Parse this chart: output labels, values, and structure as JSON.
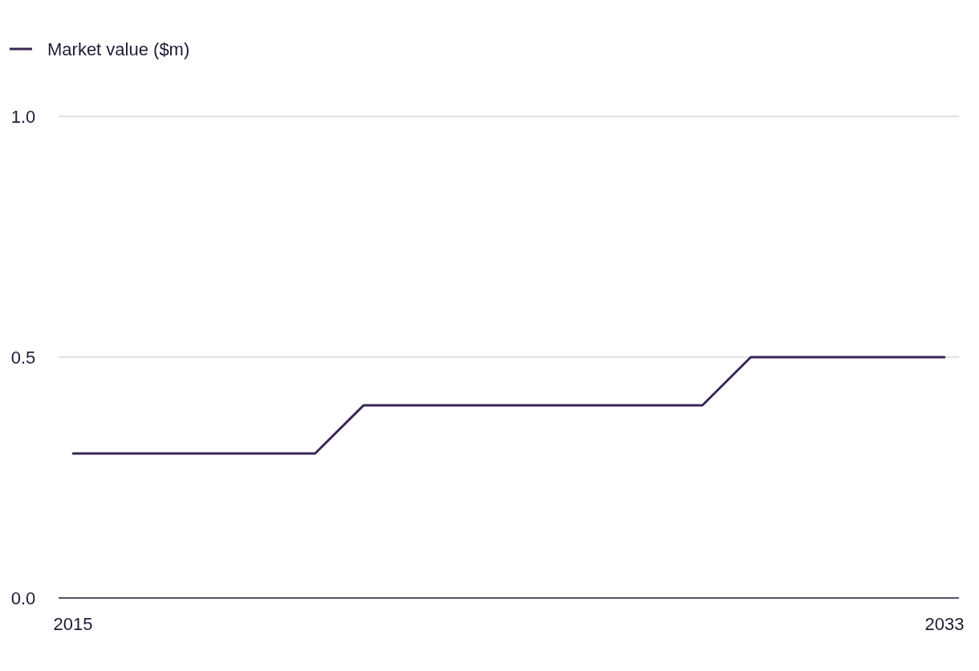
{
  "chart_data": {
    "type": "line",
    "x": [
      2015,
      2016,
      2017,
      2018,
      2019,
      2020,
      2021,
      2022,
      2023,
      2024,
      2025,
      2026,
      2027,
      2028,
      2029,
      2030,
      2031,
      2032,
      2033
    ],
    "series": [
      {
        "name": "Market value ($m)",
        "color": "#3b2556",
        "values": [
          0.3,
          0.3,
          0.3,
          0.3,
          0.3,
          0.3,
          0.4,
          0.4,
          0.4,
          0.4,
          0.4,
          0.4,
          0.4,
          0.4,
          0.5,
          0.5,
          0.5,
          0.5,
          0.5
        ]
      }
    ],
    "xlim": [
      2014.7,
      2033.3
    ],
    "xticks": [
      2015,
      2033
    ],
    "ylim": [
      0,
      1
    ],
    "yticks": [
      {
        "value": 0,
        "label": "0.0"
      },
      {
        "value": 0.5,
        "label": "0.5"
      },
      {
        "value": 1,
        "label": "1.0"
      }
    ],
    "grid": "y",
    "legend": "top left",
    "marker": "none",
    "line_style": "solid"
  }
}
